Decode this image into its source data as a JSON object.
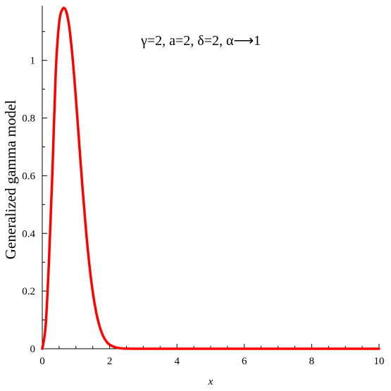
{
  "chart_data": {
    "type": "line",
    "xlabel": "x",
    "ylabel": "Generalized gamma model",
    "annotation": "γ=2, a=2, δ=2, α⟶1",
    "xlim": [
      0,
      10
    ],
    "ylim": [
      0,
      1.18
    ],
    "x_ticks": [
      0,
      2,
      4,
      6,
      8,
      10
    ],
    "x_tick_labels": [
      "0",
      "2",
      "4",
      "6",
      "8",
      "10"
    ],
    "y_ticks": [
      0,
      0.2,
      0.4,
      0.6,
      0.8,
      1
    ],
    "y_tick_labels": [
      "0",
      "0.2",
      "0.4",
      "0.6",
      "0.8",
      "1"
    ],
    "grid": false,
    "line_color": "#ff0000",
    "series": [
      {
        "x": [
          0,
          0.1,
          0.2,
          0.3,
          0.4,
          0.5,
          0.6,
          0.7,
          0.8,
          0.9,
          1.0,
          1.1,
          1.2,
          1.3,
          1.4,
          1.5,
          1.6,
          1.7,
          1.8,
          1.9,
          2.0,
          2.2,
          2.4,
          2.6,
          2.8,
          3.0,
          4.0,
          6.0,
          8.0,
          10.0
        ],
        "values": [
          0,
          0.079,
          0.307,
          0.609,
          0.958,
          1.129,
          1.177,
          1.173,
          1.117,
          1.009,
          0.866,
          0.707,
          0.55,
          0.409,
          0.29,
          0.196,
          0.127,
          0.078,
          0.046,
          0.026,
          0.014,
          0.004,
          0.001,
          0.0002,
          0,
          0,
          0,
          0,
          0,
          0
        ]
      }
    ]
  }
}
